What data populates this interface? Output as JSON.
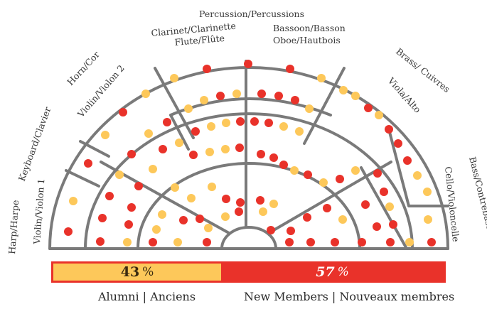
{
  "labels": {
    "percussion": "Percussion/Percussions",
    "bassoon": "Bassoon/Basson",
    "oboe": "Oboe/Hautbois",
    "clarinet": "Clarinet/Clarinette",
    "flute": "Flute/Flûte",
    "horn": "Horn/Cor",
    "violin2": "Violin/Violon 2",
    "keyboard": "Keyboard/Clavier",
    "harp": "Harp/Harpe",
    "violin1": "Violin/Violon 1",
    "brass": "Brass/ Cuivres",
    "viola": "Viola/Alto",
    "bass": "Bass/Contrebasse",
    "cello": "Cello/Violoncelle"
  },
  "summary": {
    "alumni_value": "43",
    "new_value": "57",
    "percent_sign": "%",
    "alumni_fraction": 0.43
  },
  "legend": {
    "alumni": "Alumni | Anciens",
    "new_members": "New Members | Nouveaux membres"
  },
  "colors": {
    "alumni": "#fdc85a",
    "new_member": "#e9322a",
    "wall": "#7a7a7a"
  },
  "seat_counts": {
    "alumni": 43,
    "new_members": 57
  }
}
